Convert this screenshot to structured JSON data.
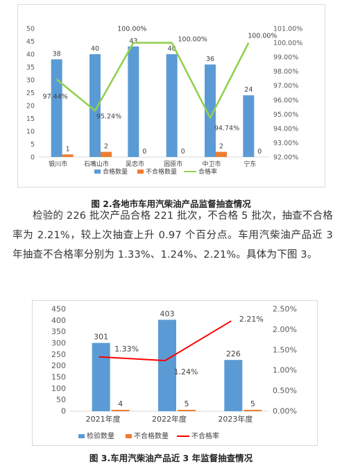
{
  "figure2": {
    "caption": "图 2.各地市车用汽柴油产品监督抽查情况",
    "chart_data": {
      "type": "bar",
      "categories": [
        "银川市",
        "石嘴山市",
        "吴忠市",
        "固原市",
        "中卫市",
        "宁东"
      ],
      "series": [
        {
          "name": "合格数量",
          "kind": "bar",
          "axis": "left",
          "color": "#5b9bd5",
          "values": [
            38,
            40,
            43,
            40,
            36,
            24
          ]
        },
        {
          "name": "不合格数量",
          "kind": "bar",
          "axis": "left",
          "color": "#ed7d31",
          "values": [
            1,
            2,
            0,
            0,
            2,
            0
          ]
        },
        {
          "name": "合格率",
          "kind": "line",
          "axis": "right",
          "color": "#92d050",
          "values": [
            97.44,
            95.24,
            100.0,
            100.0,
            94.74,
            100.0
          ]
        }
      ],
      "rate_labels": [
        "97.44%",
        "95.24%",
        "100.00%",
        "100.00%",
        "94.74%",
        "100.00%"
      ],
      "ylim": [
        0,
        50
      ],
      "yticks": [
        "0",
        "5",
        "10",
        "15",
        "20",
        "25",
        "30",
        "35",
        "40",
        "45",
        "50"
      ],
      "y2lim": [
        92,
        101
      ],
      "y2ticks": [
        "92.00%",
        "93.00%",
        "94.00%",
        "95.00%",
        "96.00%",
        "97.00%",
        "98.00%",
        "99.00%",
        "100.00%",
        "101.00%"
      ],
      "legend": "bottom",
      "grid": false
    }
  },
  "paragraph": "检验的 226 批次产品合格 221 批次，不合格 5 批次，抽查不合格率为 2.21%，较上次抽查上升 0.97 个百分点。车用汽柴油产品近 3 年抽查不合格率分别为 1.33%、1.24%、2.21%。具体为下图 3。",
  "figure3": {
    "caption": "图 3.车用汽柴油产品近 3 年监督抽查情况",
    "chart_data": {
      "type": "bar",
      "categories": [
        "2021年度",
        "2022年度",
        "2023年度"
      ],
      "series": [
        {
          "name": "检验数量",
          "kind": "bar",
          "axis": "left",
          "color": "#5b9bd5",
          "values": [
            301,
            403,
            226
          ]
        },
        {
          "name": "不合格数量",
          "kind": "bar",
          "axis": "left",
          "color": "#ed7d31",
          "values": [
            4,
            5,
            5
          ]
        },
        {
          "name": "不合格率",
          "kind": "line",
          "axis": "right",
          "color": "#ff0000",
          "values": [
            1.33,
            1.24,
            2.21
          ]
        }
      ],
      "rate_labels": [
        "1.33%",
        "1.24%",
        "2.21%"
      ],
      "ylim": [
        0,
        450
      ],
      "yticks": [
        "0",
        "50",
        "100",
        "150",
        "200",
        "250",
        "300",
        "350",
        "400",
        "450"
      ],
      "y2lim": [
        0,
        2.5
      ],
      "y2ticks": [
        "0.00%",
        "0.50%",
        "1.00%",
        "1.50%",
        "2.00%",
        "2.50%"
      ],
      "legend": "bottom",
      "grid": false
    }
  }
}
